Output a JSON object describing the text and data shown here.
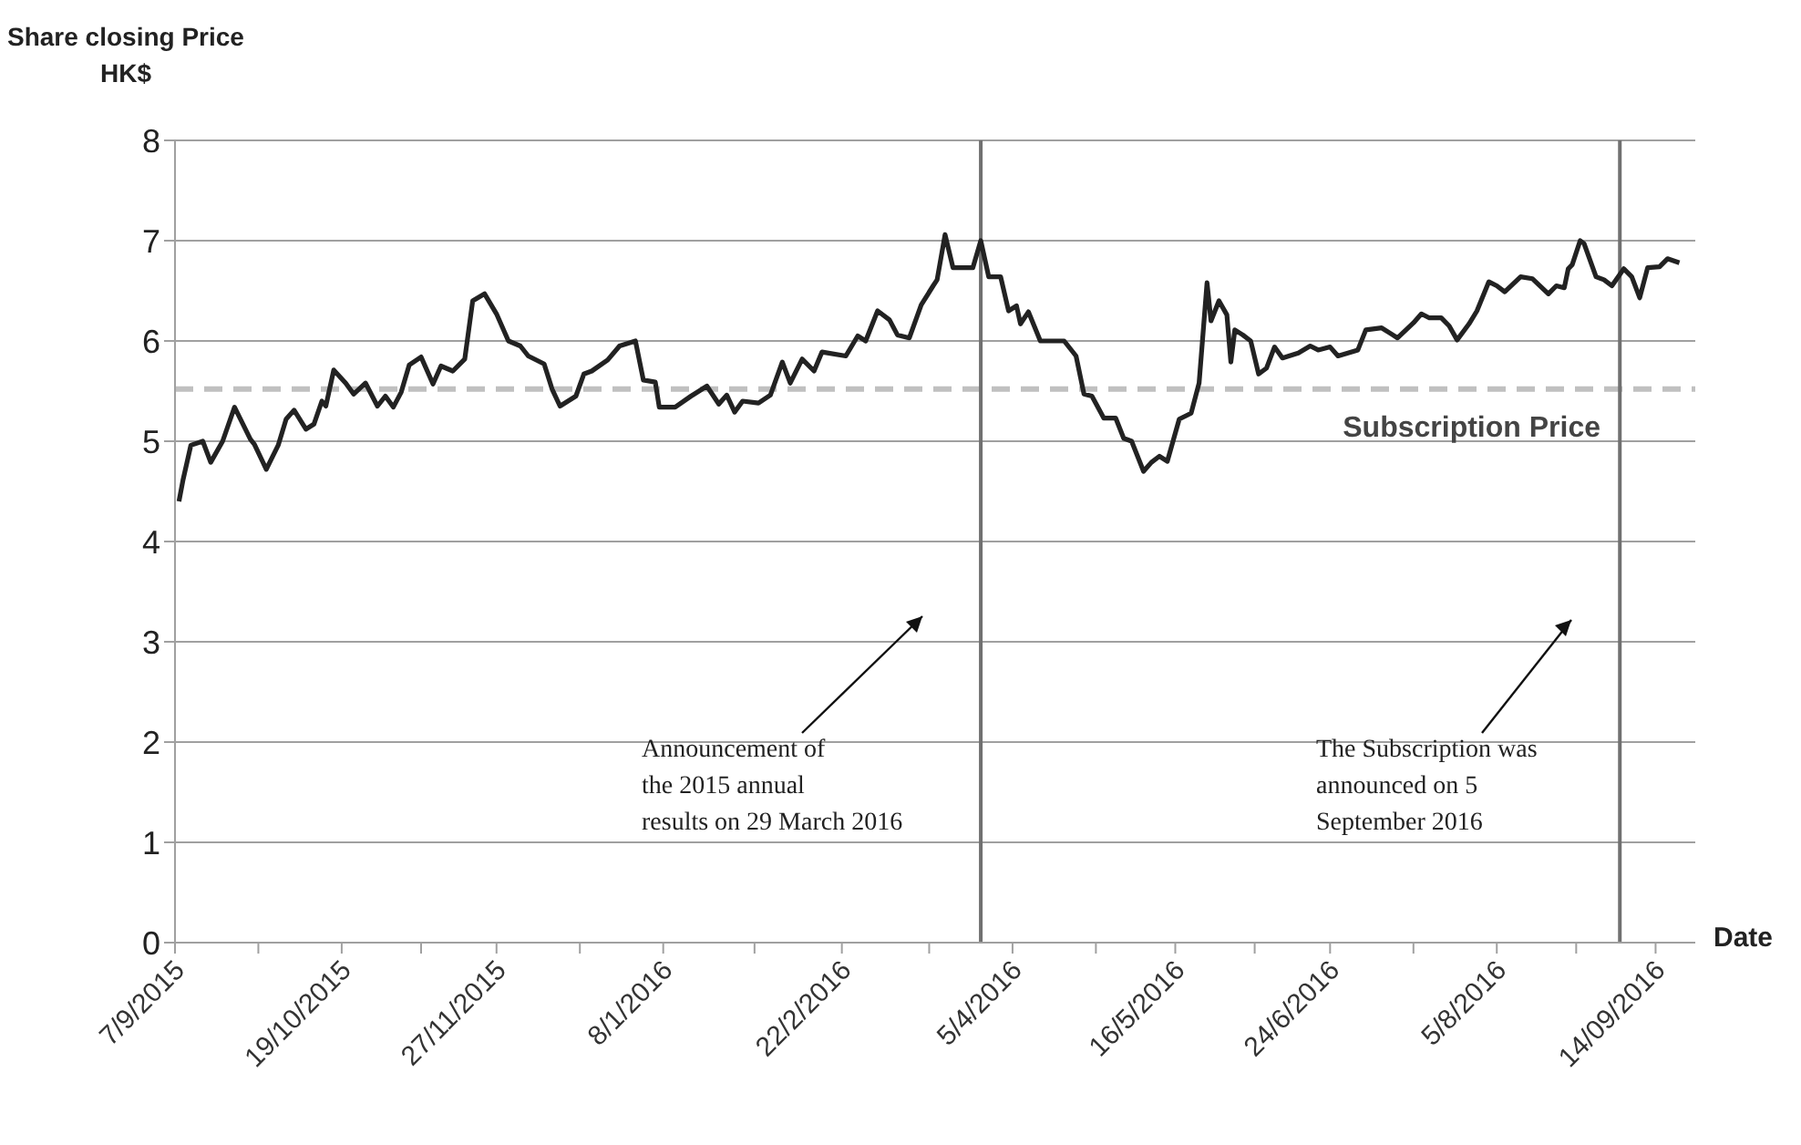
{
  "chart_data": {
    "type": "line",
    "xlabel": "Date",
    "ylabel": "Share closing Price\nHK$",
    "x": [
      "2015-09-08",
      "2015-09-09",
      "2015-09-11",
      "2015-09-14",
      "2015-09-16",
      "2015-09-19",
      "2015-09-22",
      "2015-09-26",
      "2015-09-27",
      "2015-09-30",
      "2015-10-03",
      "2015-10-05",
      "2015-10-07",
      "2015-10-10",
      "2015-10-12",
      "2015-10-14",
      "2015-10-15",
      "2015-10-17",
      "2015-10-20",
      "2015-10-22",
      "2015-10-25",
      "2015-10-28",
      "2015-10-30",
      "2015-11-01",
      "2015-11-03",
      "2015-11-05",
      "2015-11-08",
      "2015-11-11",
      "2015-11-13",
      "2015-11-16",
      "2015-11-19",
      "2015-11-21",
      "2015-11-24",
      "2015-11-27",
      "2015-11-30",
      "2015-12-03",
      "2015-12-05",
      "2015-12-09",
      "2015-12-11",
      "2015-12-13",
      "2015-12-17",
      "2015-12-19",
      "2015-12-21",
      "2015-12-25",
      "2015-12-28",
      "2016-01-01",
      "2016-01-03",
      "2016-01-06",
      "2016-01-07",
      "2016-01-11",
      "2016-01-15",
      "2016-01-19",
      "2016-01-22",
      "2016-01-24",
      "2016-01-26",
      "2016-01-28",
      "2016-02-01",
      "2016-02-04",
      "2016-02-07",
      "2016-02-09",
      "2016-02-12",
      "2016-02-15",
      "2016-02-17",
      "2016-02-23",
      "2016-02-26",
      "2016-02-28",
      "2016-03-02",
      "2016-03-05",
      "2016-03-07",
      "2016-03-10",
      "2016-03-13",
      "2016-03-16",
      "2016-03-17",
      "2016-03-19",
      "2016-03-21",
      "2016-03-26",
      "2016-03-28",
      "2016-03-30",
      "2016-04-02",
      "2016-04-04",
      "2016-04-06",
      "2016-04-07",
      "2016-04-09",
      "2016-04-12",
      "2016-04-18",
      "2016-04-21",
      "2016-04-23",
      "2016-04-25",
      "2016-04-28",
      "2016-05-01",
      "2016-05-03",
      "2016-05-05",
      "2016-05-08",
      "2016-05-10",
      "2016-05-12",
      "2016-05-14",
      "2016-05-17",
      "2016-05-20",
      "2016-05-22",
      "2016-05-24",
      "2016-05-25",
      "2016-05-27",
      "2016-05-29",
      "2016-05-30",
      "2016-05-31",
      "2016-06-02",
      "2016-06-04",
      "2016-06-06",
      "2016-06-08",
      "2016-06-10",
      "2016-06-12",
      "2016-06-16",
      "2016-06-19",
      "2016-06-21",
      "2016-06-24",
      "2016-06-26",
      "2016-07-01",
      "2016-07-03",
      "2016-07-07",
      "2016-07-11",
      "2016-07-15",
      "2016-07-17",
      "2016-07-19",
      "2016-07-22",
      "2016-07-24",
      "2016-07-26",
      "2016-07-29",
      "2016-07-31",
      "2016-08-03",
      "2016-08-05",
      "2016-08-07",
      "2016-08-11",
      "2016-08-14",
      "2016-08-18",
      "2016-08-20",
      "2016-08-22",
      "2016-08-23",
      "2016-08-24",
      "2016-08-26",
      "2016-08-27",
      "2016-08-30",
      "2016-09-01",
      "2016-09-03",
      "2016-09-06",
      "2016-09-08",
      "2016-09-10",
      "2016-09-12",
      "2016-09-15",
      "2016-09-17",
      "2016-09-20"
    ],
    "series": [
      {
        "color": "#222222",
        "values": [
          4.4,
          4.61,
          4.96,
          5.0,
          4.79,
          5.0,
          5.34,
          5.02,
          4.97,
          4.72,
          4.96,
          5.22,
          5.31,
          5.12,
          5.17,
          5.4,
          5.35,
          5.71,
          5.58,
          5.47,
          5.58,
          5.35,
          5.45,
          5.34,
          5.49,
          5.76,
          5.84,
          5.57,
          5.75,
          5.7,
          5.82,
          6.4,
          6.47,
          6.27,
          6.0,
          5.95,
          5.85,
          5.77,
          5.52,
          5.35,
          5.45,
          5.67,
          5.7,
          5.81,
          5.95,
          6.0,
          5.61,
          5.59,
          5.34,
          5.34,
          5.45,
          5.55,
          5.37,
          5.46,
          5.29,
          5.4,
          5.38,
          5.46,
          5.79,
          5.58,
          5.82,
          5.7,
          5.89,
          5.85,
          6.05,
          6.0,
          6.3,
          6.21,
          6.06,
          6.03,
          6.36,
          6.55,
          6.61,
          7.06,
          6.73,
          6.73,
          7.0,
          6.64,
          6.64,
          6.3,
          6.35,
          6.17,
          6.29,
          6.0,
          6.0,
          5.85,
          5.47,
          5.45,
          5.23,
          5.23,
          5.03,
          5.0,
          4.7,
          4.79,
          4.85,
          4.8,
          5.22,
          5.28,
          5.58,
          6.58,
          6.2,
          6.4,
          6.26,
          5.79,
          6.11,
          6.06,
          6.0,
          5.67,
          5.73,
          5.94,
          5.83,
          5.88,
          5.95,
          5.91,
          5.94,
          5.85,
          5.91,
          6.11,
          6.13,
          6.03,
          6.18,
          6.27,
          6.23,
          6.23,
          6.15,
          6.01,
          6.17,
          6.3,
          6.59,
          6.55,
          6.49,
          6.64,
          6.62,
          6.47,
          6.55,
          6.53,
          6.72,
          6.76,
          7.0,
          6.97,
          6.64,
          6.61,
          6.55,
          6.72,
          6.64,
          6.43,
          6.73,
          6.74,
          6.82,
          6.78
        ]
      }
    ],
    "xlim": [
      "2015-09-07",
      "2016-09-24"
    ],
    "xticks": [
      {
        "value": "2015-09-07",
        "label": "7/9/2015"
      },
      {
        "value": "2015-09-28",
        "label": null
      },
      {
        "value": "2015-10-19",
        "label": "19/10/2015"
      },
      {
        "value": "2015-11-08",
        "label": null
      },
      {
        "value": "2015-11-27",
        "label": "27/11/2015"
      },
      {
        "value": "2015-12-18",
        "label": null
      },
      {
        "value": "2016-01-08",
        "label": "8/1/2016"
      },
      {
        "value": "2016-01-31",
        "label": null
      },
      {
        "value": "2016-02-22",
        "label": "22/2/2016"
      },
      {
        "value": "2016-03-15",
        "label": null
      },
      {
        "value": "2016-04-05",
        "label": "5/4/2016"
      },
      {
        "value": "2016-04-26",
        "label": null
      },
      {
        "value": "2016-05-16",
        "label": "16/5/2016"
      },
      {
        "value": "2016-06-05",
        "label": null
      },
      {
        "value": "2016-06-24",
        "label": "24/6/2016"
      },
      {
        "value": "2016-07-15",
        "label": null
      },
      {
        "value": "2016-08-05",
        "label": "5/8/2016"
      },
      {
        "value": "2016-08-25",
        "label": null
      },
      {
        "value": "2016-09-14",
        "label": "14/09/2016"
      }
    ],
    "ylim": [
      0,
      8
    ],
    "yticks": [
      0,
      1,
      2,
      3,
      4,
      5,
      6,
      7,
      8
    ],
    "grid": "y",
    "legend": false,
    "marker": "none",
    "line_style": "solid",
    "ref_lines": [
      {
        "axis": "y",
        "value": 5.52,
        "label": "Subscription Price",
        "color": "#c0c0c0",
        "line_style": "dashed"
      },
      {
        "axis": "x",
        "value": "2016-03-28",
        "color": "#707070",
        "line_style": "solid"
      },
      {
        "axis": "x",
        "value": "2016-09-05",
        "color": "#707070",
        "line_style": "solid"
      }
    ],
    "annotations": [
      "Announcement of\nthe 2015 annual\nresults on 29 March 2016",
      "The Subscription was\nannounced on 5\nSeptember 2016"
    ]
  }
}
